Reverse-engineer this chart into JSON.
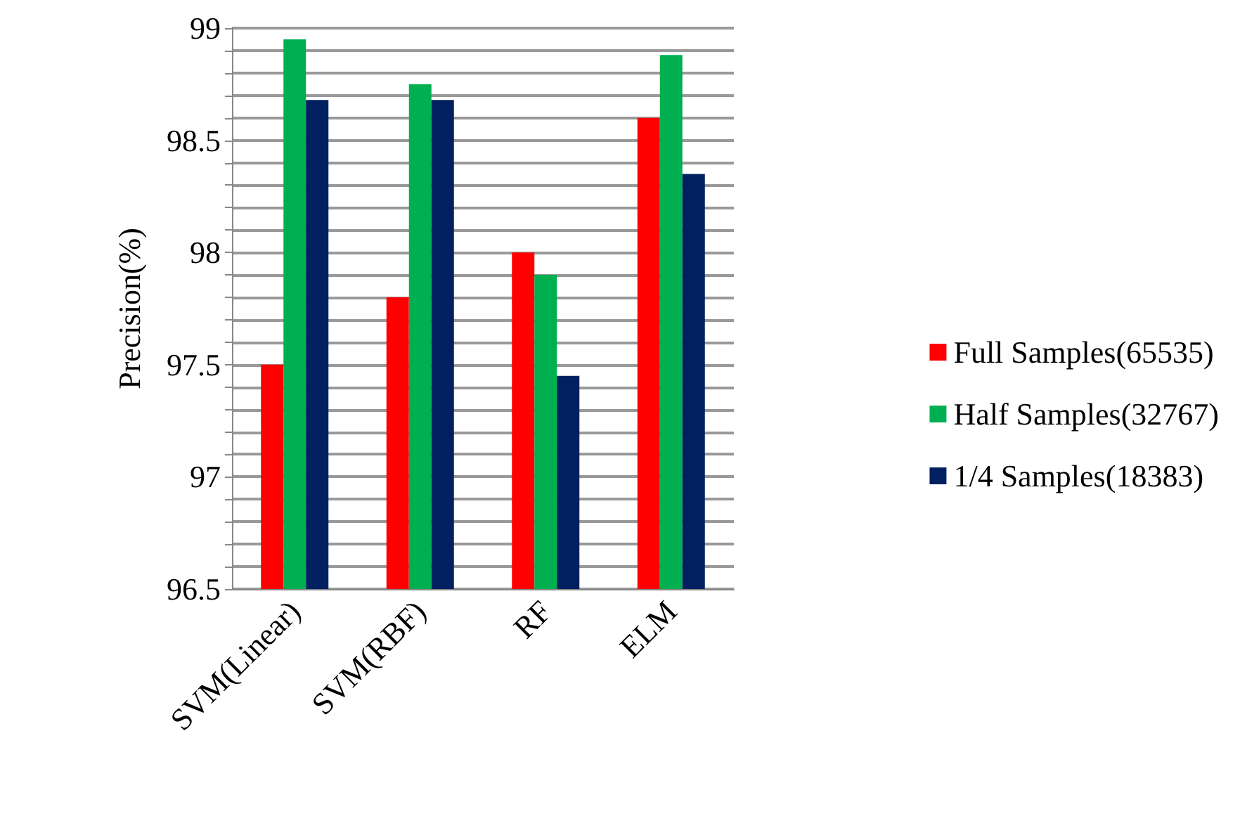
{
  "chart_data": {
    "type": "bar",
    "ylabel": "Precision(%)",
    "categories": [
      "SVM(Linear)",
      "SVM(RBF)",
      "RF",
      "ELM"
    ],
    "series": [
      {
        "name": "Full Samples(65535)",
        "color": "#ff0000",
        "values": [
          97.5,
          97.8,
          98.0,
          98.6
        ]
      },
      {
        "name": "Half Samples(32767)",
        "color": "#00b050",
        "values": [
          98.95,
          98.75,
          97.9,
          98.88
        ]
      },
      {
        "name": "1/4 Samples(18383)",
        "color": "#002060",
        "values": [
          98.68,
          98.68,
          97.45,
          98.35
        ]
      }
    ],
    "ylim": [
      96.5,
      99
    ],
    "yticks": [
      96.5,
      {
        "value": 96.6,
        "label": null
      },
      {
        "value": 96.7,
        "label": null
      },
      {
        "value": 96.8,
        "label": null
      },
      {
        "value": 96.9,
        "label": null
      },
      97,
      {
        "value": 97.1,
        "label": null
      },
      {
        "value": 97.2,
        "label": null
      },
      {
        "value": 97.3,
        "label": null
      },
      {
        "value": 97.4,
        "label": null
      },
      97.5,
      {
        "value": 97.6,
        "label": null
      },
      {
        "value": 97.7,
        "label": null
      },
      {
        "value": 97.8,
        "label": null
      },
      {
        "value": 97.9,
        "label": null
      },
      98,
      {
        "value": 98.1,
        "label": null
      },
      {
        "value": 98.2,
        "label": null
      },
      {
        "value": 98.3,
        "label": null
      },
      {
        "value": 98.4,
        "label": null
      },
      98.5,
      {
        "value": 98.6,
        "label": null
      },
      {
        "value": 98.7,
        "label": null
      },
      {
        "value": 98.8,
        "label": null
      },
      {
        "value": 98.9,
        "label": null
      },
      99
    ],
    "grid": "y",
    "legend": "right"
  }
}
